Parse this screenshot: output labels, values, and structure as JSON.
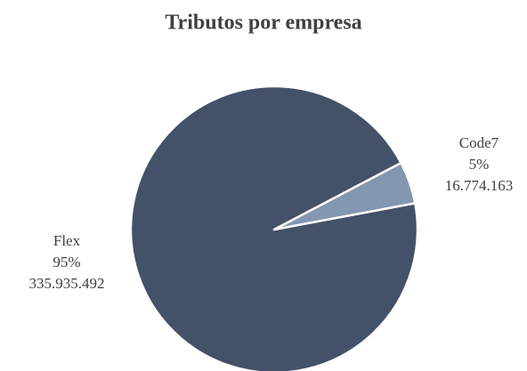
{
  "chart_data": {
    "type": "pie",
    "title": "Tributos por empresa",
    "categories": [
      "Flex",
      "Code7"
    ],
    "values": [
      335935492,
      16774163
    ],
    "value_labels": [
      "335.935.492",
      "16.774.163"
    ],
    "percentages": [
      95,
      5
    ],
    "percentage_labels": [
      "95%",
      "5%"
    ],
    "colors": [
      "#435268",
      "#8497b0"
    ]
  }
}
